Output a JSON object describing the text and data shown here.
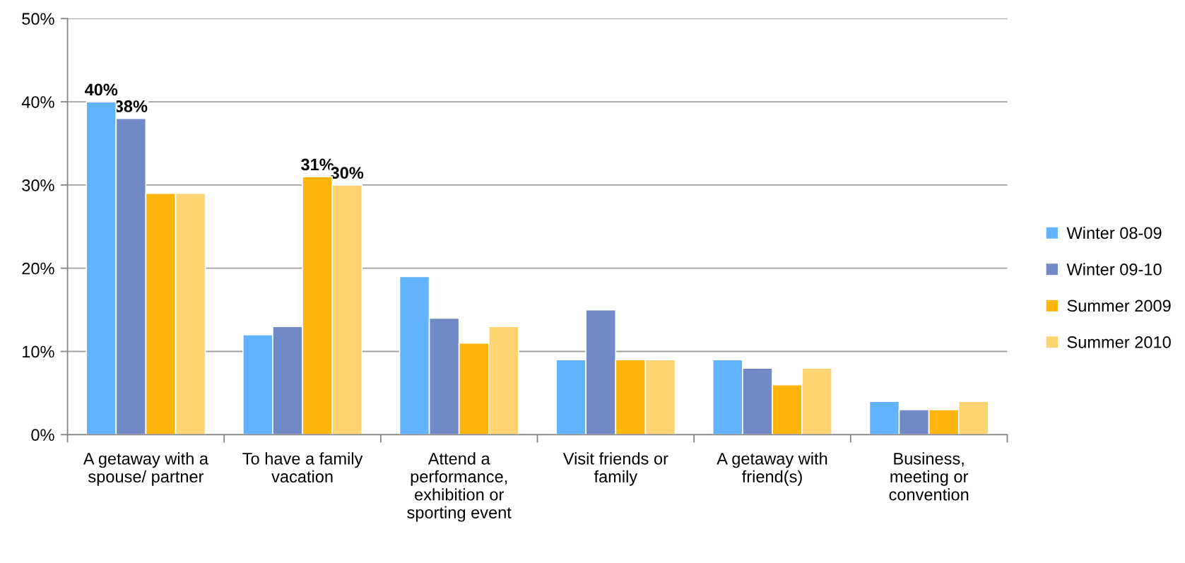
{
  "chart_data": {
    "type": "bar",
    "categories": [
      "A getaway with a\nspouse/ partner",
      "To have a family\nvacation",
      "Attend a\nperformance,\nexhibition or\nsporting event",
      "Visit friends or\nfamily",
      "A getaway with\nfriend(s)",
      "Business,\nmeeting or\nconvention"
    ],
    "series": [
      {
        "name": "Winter 08-09",
        "color": "#62b3fe",
        "values": [
          40,
          12,
          19,
          9,
          9,
          4
        ],
        "value_labels": [
          "40%",
          null,
          null,
          null,
          null,
          null
        ]
      },
      {
        "name": "Winter 09-10",
        "color": "#7189c7",
        "values": [
          38,
          13,
          14,
          15,
          8,
          3
        ],
        "value_labels": [
          "38%",
          null,
          null,
          null,
          null,
          null
        ]
      },
      {
        "name": "Summer 2009",
        "color": "#fdb40d",
        "values": [
          29,
          31,
          11,
          9,
          6,
          3
        ],
        "value_labels": [
          null,
          "31%",
          null,
          null,
          null,
          null
        ]
      },
      {
        "name": "Summer 2010",
        "color": "#fdd470",
        "values": [
          29,
          30,
          13,
          9,
          8,
          4
        ],
        "value_labels": [
          null,
          "30%",
          null,
          null,
          null,
          null
        ]
      }
    ],
    "ylim": [
      0,
      50
    ],
    "yticks": [
      {
        "value": 0,
        "label": "0%"
      },
      {
        "value": 10,
        "label": "10%"
      },
      {
        "value": 20,
        "label": "20%"
      },
      {
        "value": 30,
        "label": "30%"
      },
      {
        "value": 40,
        "label": "40%"
      },
      {
        "value": 50,
        "label": "50%"
      }
    ],
    "grid": "y",
    "legend": "right"
  }
}
